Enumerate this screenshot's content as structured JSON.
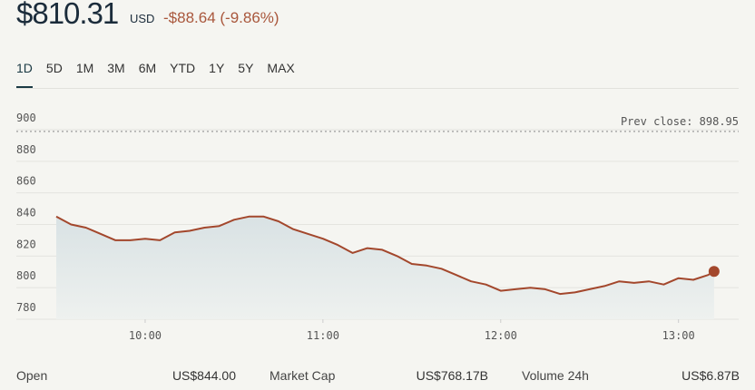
{
  "header": {
    "price": "$810.31",
    "currency": "USD",
    "change": "-$88.64 (-9.86%)"
  },
  "tabs": {
    "items": [
      "1D",
      "5D",
      "1M",
      "3M",
      "6M",
      "YTD",
      "1Y",
      "5Y",
      "MAX"
    ],
    "active": "1D"
  },
  "chart_data": {
    "type": "line",
    "color": "#a3472c",
    "x": [
      "09:30",
      "09:35",
      "09:40",
      "09:45",
      "09:50",
      "09:55",
      "10:00",
      "10:05",
      "10:10",
      "10:15",
      "10:20",
      "10:25",
      "10:30",
      "10:35",
      "10:40",
      "10:45",
      "10:50",
      "10:55",
      "11:00",
      "11:05",
      "11:10",
      "11:15",
      "11:20",
      "11:25",
      "11:30",
      "11:35",
      "11:40",
      "11:45",
      "11:50",
      "11:55",
      "12:00",
      "12:05",
      "12:10",
      "12:15",
      "12:20",
      "12:25",
      "12:30",
      "12:35",
      "12:40",
      "12:45",
      "12:50",
      "12:55",
      "13:00",
      "13:05",
      "13:10",
      "13:12"
    ],
    "values": [
      845,
      840,
      838,
      834,
      830,
      830,
      831,
      830,
      835,
      836,
      838,
      839,
      843,
      845,
      845,
      842,
      837,
      834,
      831,
      827,
      822,
      825,
      824,
      820,
      815,
      814,
      812,
      808,
      804,
      802,
      798,
      799,
      800,
      799,
      796,
      797,
      799,
      801,
      804,
      803,
      804,
      802,
      806,
      805,
      808,
      810.31
    ],
    "xlim": [
      "09:30",
      "13:20"
    ],
    "ylim": [
      780,
      900
    ],
    "xticks": [
      "10:00",
      "11:00",
      "12:00",
      "13:00"
    ],
    "yticks": [
      780,
      800,
      820,
      840,
      860,
      880,
      900
    ],
    "prev_close": {
      "value": 898.95,
      "label": "Prev close: 898.95"
    }
  },
  "stats": [
    {
      "label": "Open",
      "value": "US$844.00"
    },
    {
      "label": "Market Cap",
      "value": "US$768.17B"
    },
    {
      "label": "Volume 24h",
      "value": "US$6.87B"
    }
  ]
}
